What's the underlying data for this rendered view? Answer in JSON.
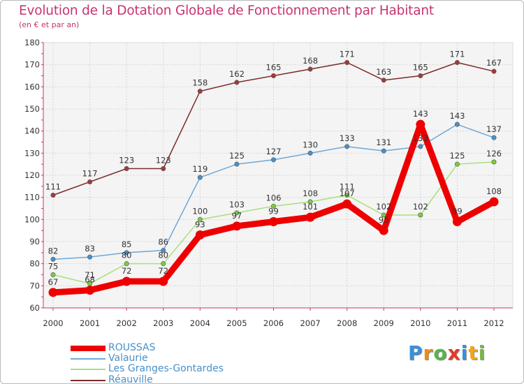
{
  "title": "Evolution de la Dotation Globale de Fonctionnement par Habitant",
  "subtitle": "(en € et par an)",
  "logo": {
    "text": "Proxiti",
    "letters": [
      "P",
      "r",
      "o",
      "x",
      "i",
      "t",
      "i"
    ],
    "colors": [
      "#3a8fd8",
      "#f08a1a",
      "#58b548",
      "#e8382c",
      "#3a8fd8",
      "#f0a81a",
      "#7ab648"
    ]
  },
  "chart_data": {
    "type": "line",
    "title": "Evolution de la Dotation Globale de Fonctionnement par Habitant",
    "subtitle": "(en € et par an)",
    "xlabel": "",
    "ylabel": "",
    "x": [
      "2000",
      "2001",
      "2002",
      "2003",
      "2004",
      "2005",
      "2006",
      "2007",
      "2008",
      "2009",
      "2010",
      "2011",
      "2012"
    ],
    "ylim": [
      60,
      180
    ],
    "yticks": [
      60,
      70,
      80,
      90,
      100,
      110,
      120,
      130,
      140,
      150,
      160,
      170,
      180
    ],
    "grid": true,
    "legend_position": "bottom-left",
    "series": [
      {
        "name": "Réauville",
        "color": "#7b2b2b",
        "markerFill": "#a33a3a",
        "values": [
          111,
          117,
          123,
          123,
          158,
          162,
          165,
          168,
          171,
          163,
          165,
          171,
          167
        ],
        "labels": [
          "111",
          "117",
          "123",
          "123",
          "158",
          "162",
          "165",
          "168",
          "171",
          "163",
          "165",
          "171",
          "167"
        ]
      },
      {
        "name": "Valaurie",
        "color": "#6ea8d8",
        "markerFill": "#4a90c8",
        "values": [
          82,
          83,
          85,
          86,
          119,
          125,
          127,
          130,
          133,
          131,
          133,
          143,
          137
        ],
        "labels": [
          "82",
          "83",
          "85",
          "86",
          "119",
          "125",
          "127",
          "130",
          "133",
          "131",
          "133",
          "143",
          "137"
        ]
      },
      {
        "name": "Les Granges-Gontardes",
        "color": "#a8e07a",
        "markerFill": "#7acd3c",
        "values": [
          75,
          71,
          80,
          80,
          100,
          103,
          106,
          108,
          111,
          102,
          102,
          125,
          126
        ],
        "labels": [
          "75",
          "71",
          "80",
          "80",
          "100",
          "103",
          "106",
          "108",
          "111",
          "102",
          "102",
          "125",
          "126"
        ]
      },
      {
        "name": "ROUSSAS",
        "color": "#ee0000",
        "markerFill": "#ee0000",
        "values": [
          67,
          68,
          72,
          72,
          93,
          97,
          99,
          101,
          107,
          95,
          143,
          99,
          108
        ],
        "labels": [
          "67",
          "68",
          "72",
          "72",
          "93",
          "97",
          "99",
          "101",
          "107",
          "95",
          "143",
          "99",
          "108"
        ]
      }
    ]
  },
  "legend": [
    {
      "label": "ROUSSAS",
      "color": "#ee0000"
    },
    {
      "label": "Valaurie",
      "color": "#6ea8d8"
    },
    {
      "label": "Les Granges-Gontardes",
      "color": "#a8e07a"
    },
    {
      "label": "Réauville",
      "color": "#7b2b2b"
    }
  ]
}
